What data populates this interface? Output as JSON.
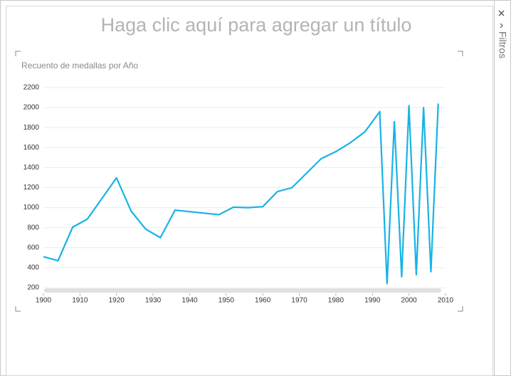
{
  "title": "Haga clic aquí para agregar un título",
  "filters_label": "Filtros",
  "chart_data": {
    "type": "line",
    "title": "Recuento de medallas por Año",
    "x": [
      1900,
      1904,
      1908,
      1912,
      1920,
      1924,
      1928,
      1932,
      1936,
      1948,
      1952,
      1956,
      1960,
      1964,
      1968,
      1972,
      1976,
      1980,
      1984,
      1988,
      1992,
      1994,
      1996,
      1998,
      2000,
      2002,
      2004,
      2006,
      2008
    ],
    "values": [
      510,
      470,
      805,
      885,
      1298,
      965,
      785,
      700,
      975,
      930,
      1005,
      1000,
      1010,
      1160,
      1200,
      1345,
      1490,
      1560,
      1650,
      1760,
      1960,
      240,
      1860,
      310,
      2020,
      330,
      2000,
      360,
      2040
    ],
    "color": "#17b3e6",
    "xlim": [
      1900,
      2010
    ],
    "xticks": [
      1900,
      1910,
      1920,
      1930,
      1940,
      1950,
      1960,
      1970,
      1980,
      1990,
      2000,
      2010
    ],
    "ylim": [
      200,
      2200
    ],
    "yticks": [
      200,
      400,
      600,
      800,
      1000,
      1200,
      1400,
      1600,
      1800,
      2000,
      2200
    ],
    "grid": true
  }
}
